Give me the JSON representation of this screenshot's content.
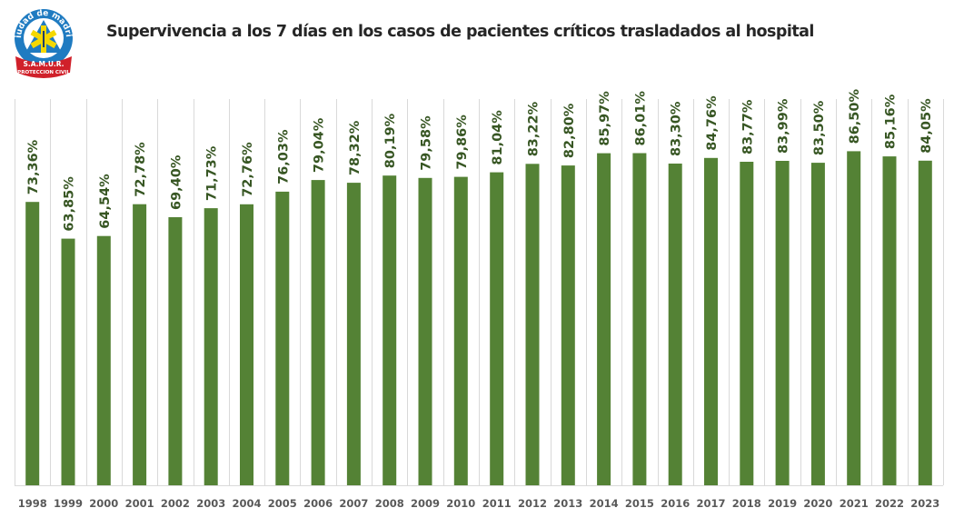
{
  "logo": {
    "top_text": "ciudad de madrid",
    "banner_line1": "S.A.M.U.R.",
    "banner_line2": "PROTECCION CIVIL"
  },
  "colors": {
    "bar": "#548235",
    "label": "#375623",
    "grid": "#d9d9d9",
    "tick": "#595959",
    "title": "#262626"
  },
  "chart_data": {
    "type": "bar",
    "title": "Supervivencia a los 7 días en los casos de pacientes críticos trasladados al hospital",
    "xlabel": "",
    "ylabel": "",
    "ylim": [
      0,
      100
    ],
    "grid": "vertical category separators",
    "legend": "none",
    "categories": [
      "1998",
      "1999",
      "2000",
      "2001",
      "2002",
      "2003",
      "2004",
      "2005",
      "2006",
      "2007",
      "2008",
      "2009",
      "2010",
      "2011",
      "2012",
      "2013",
      "2014",
      "2015",
      "2016",
      "2017",
      "2018",
      "2019",
      "2020",
      "2021",
      "2022",
      "2023"
    ],
    "values": [
      73.36,
      63.85,
      64.54,
      72.78,
      69.4,
      71.73,
      72.76,
      76.03,
      79.04,
      78.32,
      80.19,
      79.58,
      79.86,
      81.04,
      83.22,
      82.8,
      85.97,
      86.01,
      83.3,
      84.76,
      83.77,
      83.99,
      83.5,
      86.5,
      85.16,
      84.05
    ],
    "data_labels": [
      "73,36%",
      "63,85%",
      "64,54%",
      "72,78%",
      "69,40%",
      "71,73%",
      "72,76%",
      "76,03%",
      "79,04%",
      "78,32%",
      "80,19%",
      "79,58%",
      "79,86%",
      "81,04%",
      "83,22%",
      "82,80%",
      "85,97%",
      "86,01%",
      "83,30%",
      "84,76%",
      "83,77%",
      "83,99%",
      "83,50%",
      "86,50%",
      "85,16%",
      "84,05%"
    ]
  }
}
